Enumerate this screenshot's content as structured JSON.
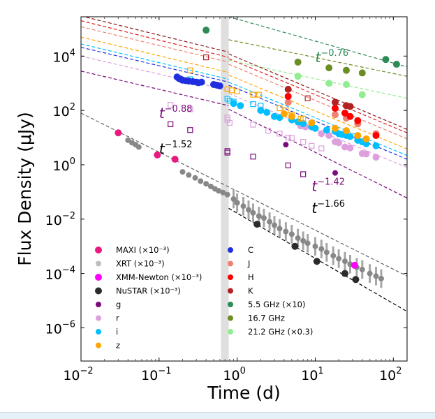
{
  "chart_data": {
    "type": "scatter",
    "xscale": "log",
    "yscale": "log",
    "xlabel": "Time (d)",
    "ylabel": "Flux Density (μJy)",
    "xlim": [
      0.01,
      150
    ],
    "ylim": [
      6e-08,
      280000.0
    ],
    "xticks": [
      {
        "v": -2,
        "label": "10",
        "exp": "−2"
      },
      {
        "v": -1,
        "label": "10",
        "exp": "−1"
      },
      {
        "v": 0,
        "label": "10",
        "exp": "0"
      },
      {
        "v": 1,
        "label": "10",
        "exp": "1"
      },
      {
        "v": 2,
        "label": "10",
        "exp": "2"
      }
    ],
    "yticks": [
      {
        "v": 4,
        "label": "10",
        "exp": "4"
      },
      {
        "v": 2,
        "label": "10",
        "exp": "2"
      },
      {
        "v": 0,
        "label": "10",
        "exp": "0"
      },
      {
        "v": -2,
        "label": "10",
        "exp": "−2"
      },
      {
        "v": -4,
        "label": "10",
        "exp": "−4"
      },
      {
        "v": -6,
        "label": "10",
        "exp": "−6"
      }
    ],
    "shaded_band": {
      "x0": 0.62,
      "x1": 0.78,
      "color": "#d9d9d9"
    },
    "legend_placement": "lower-left (two columns)",
    "series": [
      {
        "name": "MAXI (×10⁻³)",
        "color": "#e8197f",
        "marker": "circle",
        "size": 5,
        "points": [
          [
            0.03,
            15
          ],
          [
            0.095,
            2.3
          ],
          [
            0.16,
            1.6
          ]
        ]
      },
      {
        "name": "XRT (×10⁻³)",
        "color": "#888888",
        "legend_color": "#bfbfbf",
        "marker": "circle",
        "size": 4,
        "points": [
          [
            0.04,
            8
          ],
          [
            0.045,
            6.5
          ],
          [
            0.05,
            5.5
          ],
          [
            0.055,
            4.5
          ],
          [
            0.2,
            0.55
          ],
          [
            0.24,
            0.42
          ],
          [
            0.29,
            0.33
          ],
          [
            0.34,
            0.25
          ],
          [
            0.4,
            0.2
          ],
          [
            0.46,
            0.16
          ],
          [
            0.52,
            0.13
          ],
          [
            0.58,
            0.11
          ],
          [
            0.66,
            0.095
          ],
          [
            0.75,
            0.08
          ],
          [
            0.9,
            0.055
          ],
          [
            1.0,
            0.04
          ],
          [
            1.2,
            0.03
          ],
          [
            1.4,
            0.022
          ],
          [
            1.6,
            0.017
          ],
          [
            1.9,
            0.013
          ],
          [
            2.2,
            0.011
          ],
          [
            2.6,
            0.008
          ],
          [
            3.0,
            0.006
          ],
          [
            3.5,
            0.0045
          ],
          [
            4.2,
            0.0035
          ],
          [
            5,
            0.0028
          ],
          [
            6,
            0.002
          ],
          [
            7,
            0.0016
          ],
          [
            8,
            0.0013
          ],
          [
            10,
            0.001
          ],
          [
            12,
            0.0008
          ],
          [
            14,
            0.0006
          ],
          [
            17,
            0.00045
          ],
          [
            20,
            0.00035
          ],
          [
            24,
            0.00028
          ],
          [
            28,
            0.00022
          ],
          [
            34,
            0.00017
          ],
          [
            40,
            0.00014
          ],
          [
            50,
            0.0001
          ],
          [
            60,
            8e-05
          ],
          [
            70,
            6.5e-05
          ]
        ]
      },
      {
        "name": "XMM-Newton (×10⁻³)",
        "color": "#ff00ff",
        "marker": "circle",
        "size": 5,
        "points": [
          [
            32,
            0.0002
          ]
        ]
      },
      {
        "name": "NuSTAR (×10⁻³)",
        "color": "#2b2b2b",
        "marker": "circle",
        "size": 5,
        "points": [
          [
            1.8,
            0.0065
          ],
          [
            5.5,
            0.001
          ],
          [
            10.5,
            0.00028
          ],
          [
            24,
            0.0001
          ],
          [
            33,
            6e-05
          ]
        ]
      },
      {
        "name": "g",
        "color": "#7b0a7b",
        "marker": "circle",
        "size": 4,
        "points": [
          [
            4.2,
            5.5
          ],
          [
            18,
            0.5
          ]
        ],
        "open_squares": [
          [
            0.14,
            31
          ],
          [
            0.25,
            19
          ],
          [
            0.75,
            3.2
          ],
          [
            0.75,
            2.8
          ],
          [
            1.6,
            2.0
          ],
          [
            4.5,
            0.95
          ],
          [
            7,
            0.45
          ]
        ]
      },
      {
        "name": "r",
        "color": "#dda0dd",
        "marker": "circle",
        "size": 5,
        "points": [
          [
            6.5,
            27
          ],
          [
            7.5,
            25
          ],
          [
            12,
            14
          ],
          [
            15,
            12
          ],
          [
            18,
            7
          ],
          [
            20,
            6.5
          ],
          [
            24,
            4.5
          ],
          [
            28,
            4.2
          ],
          [
            40,
            2.6
          ],
          [
            45,
            2.5
          ],
          [
            60,
            1.9
          ]
        ],
        "open_squares": [
          [
            0.14,
            160
          ],
          [
            0.25,
            110
          ],
          [
            0.75,
            55
          ],
          [
            0.75,
            45
          ],
          [
            0.8,
            35
          ],
          [
            1.6,
            30
          ],
          [
            2.5,
            18
          ],
          [
            3.5,
            14
          ],
          [
            4.5,
            10
          ],
          [
            5,
            9.5
          ],
          [
            7,
            7
          ],
          [
            9,
            5
          ],
          [
            12,
            4
          ]
        ]
      },
      {
        "name": "i",
        "color": "#00bfff",
        "marker": "circle",
        "size": 5,
        "points": [
          [
            0.9,
            180
          ],
          [
            1.1,
            150
          ],
          [
            2,
            100
          ],
          [
            2.4,
            85
          ],
          [
            3,
            60
          ],
          [
            3.5,
            55
          ],
          [
            5,
            45
          ],
          [
            6,
            38
          ],
          [
            7,
            33
          ],
          [
            9,
            25
          ],
          [
            10,
            22
          ],
          [
            14,
            19
          ],
          [
            18,
            17
          ],
          [
            20,
            14
          ],
          [
            22,
            13
          ],
          [
            25,
            12
          ],
          [
            28,
            11
          ],
          [
            35,
            8
          ],
          [
            40,
            7
          ],
          [
            45,
            6
          ],
          [
            60,
            5
          ]
        ],
        "open_squares": [
          [
            0.25,
            1400
          ],
          [
            0.75,
            270
          ],
          [
            0.8,
            230
          ],
          [
            0.9,
            210
          ],
          [
            1.6,
            170
          ],
          [
            2.0,
            150
          ]
        ]
      },
      {
        "name": "z",
        "color": "#ffa500",
        "marker": "circle",
        "size": 5,
        "points": [
          [
            4,
            75
          ],
          [
            5,
            60
          ],
          [
            9,
            35
          ],
          [
            18,
            22
          ],
          [
            25,
            18
          ],
          [
            35,
            12
          ],
          [
            45,
            9
          ]
        ],
        "open_squares": [
          [
            0.25,
            3000
          ],
          [
            0.75,
            600
          ],
          [
            0.85,
            550
          ],
          [
            1.0,
            500
          ],
          [
            1.6,
            380
          ],
          [
            1.9,
            380
          ],
          [
            3.5,
            120
          ],
          [
            4.2,
            100
          ],
          [
            5,
            70
          ],
          [
            6.5,
            50
          ],
          [
            7,
            50
          ]
        ]
      },
      {
        "name": "C",
        "color": "#1f2fe0",
        "marker": "circle",
        "size": 5,
        "points": [
          [
            0.17,
            1700
          ],
          [
            0.18,
            1500
          ],
          [
            0.19,
            1400
          ],
          [
            0.2,
            1300
          ],
          [
            0.22,
            1250
          ],
          [
            0.24,
            1200
          ],
          [
            0.27,
            1150
          ],
          [
            0.3,
            1100
          ],
          [
            0.32,
            1050
          ],
          [
            0.35,
            1100
          ],
          [
            0.5,
            900
          ],
          [
            0.55,
            850
          ],
          [
            0.6,
            800
          ]
        ]
      },
      {
        "name": "J",
        "color": "#f08070",
        "marker": "circle",
        "size": 5,
        "points": [
          [
            4.5,
            200
          ],
          [
            18,
            70
          ],
          [
            25,
            52
          ],
          [
            35,
            32
          ],
          [
            60,
            14
          ]
        ]
      },
      {
        "name": "H",
        "color": "#ff0000",
        "marker": "circle",
        "size": 5,
        "points": [
          [
            4.5,
            330
          ],
          [
            18,
            120
          ],
          [
            24,
            80
          ],
          [
            28,
            60
          ],
          [
            35,
            42
          ],
          [
            60,
            12
          ]
        ]
      },
      {
        "name": "K",
        "color": "#b22222",
        "marker": "circle",
        "size": 5,
        "points": [
          [
            4.5,
            600
          ],
          [
            18,
            200
          ],
          [
            25,
            150
          ],
          [
            28,
            140
          ]
        ],
        "open_squares": [
          [
            0.4,
            9000
          ],
          [
            8,
            280
          ]
        ]
      },
      {
        "name": "5.5 GHz (×10)",
        "color": "#2e8b57",
        "marker": "circle",
        "size": 5,
        "points": [
          [
            0.4,
            90000
          ],
          [
            80,
            7500
          ],
          [
            110,
            5000
          ]
        ]
      },
      {
        "name": "16.7 GHz",
        "color": "#6b8e23",
        "marker": "circle",
        "size": 5,
        "points": [
          [
            6,
            6000
          ],
          [
            15,
            3700
          ],
          [
            25,
            3000
          ],
          [
            40,
            2400
          ]
        ]
      },
      {
        "name": "21.2 GHz (×0.3)",
        "color": "#90ee90",
        "marker": "circle",
        "size": 5,
        "points": [
          [
            6,
            1800
          ],
          [
            15,
            1000
          ],
          [
            25,
            900
          ],
          [
            40,
            380
          ]
        ]
      }
    ],
    "fit_lines": [
      {
        "color": "#2e8b57",
        "segments": [
          [
            0.78,
            280000,
            150,
            4000
          ]
        ]
      },
      {
        "color": "#6b8e23",
        "segments": [
          [
            0.78,
            40000,
            150,
            1800
          ]
        ]
      },
      {
        "color": "#90ee90",
        "segments": [
          [
            0.78,
            7000,
            150,
            280
          ]
        ]
      },
      {
        "color": "#8b1a1a",
        "segments": [
          [
            0.01,
            300000,
            0.78,
            14000
          ],
          [
            0.78,
            12000,
            150,
            20
          ]
        ]
      },
      {
        "color": "#e02020",
        "segments": [
          [
            0.01,
            200000,
            0.78,
            9000
          ],
          [
            0.78,
            8000,
            150,
            15
          ]
        ]
      },
      {
        "color": "#f08070",
        "segments": [
          [
            0.01,
            120000,
            0.78,
            6000
          ],
          [
            0.78,
            5000,
            150,
            9
          ]
        ]
      },
      {
        "color": "#ffa500",
        "segments": [
          [
            0.01,
            50000,
            0.78,
            2500
          ],
          [
            0.78,
            2000,
            150,
            3.8
          ]
        ]
      },
      {
        "color": "#00bfff",
        "segments": [
          [
            0.01,
            28000,
            0.78,
            1400
          ],
          [
            0.78,
            1100,
            150,
            2.2
          ]
        ]
      },
      {
        "color": "#1f2fe0",
        "segments": [
          [
            0.01,
            21000,
            0.78,
            1100
          ],
          [
            0.78,
            850,
            150,
            1.6
          ]
        ]
      },
      {
        "color": "#dda0dd",
        "segments": [
          [
            0.01,
            10000,
            0.78,
            550
          ],
          [
            0.78,
            420,
            150,
            0.8
          ]
        ]
      },
      {
        "color": "#7b0a7b",
        "segments": [
          [
            0.01,
            2800,
            0.78,
            150
          ],
          [
            0.78,
            110,
            150,
            0.06
          ]
        ]
      },
      {
        "color": "#666666",
        "segments": [
          [
            0.01,
            80,
            150,
            8e-05
          ]
        ]
      },
      {
        "color": "#000000",
        "segments": [
          [
            0.78,
            0.025,
            150,
            4e-06
          ]
        ]
      }
    ],
    "annotations": [
      {
        "base": "t",
        "exp": "−0.88",
        "x": 0.1,
        "y": 52,
        "color": "#7b0a7b"
      },
      {
        "base": "t",
        "exp": "−1.52",
        "x": 0.1,
        "y": 2.6,
        "color": "#000000"
      },
      {
        "base": "t",
        "exp": "−0.76",
        "x": 10,
        "y": 6000,
        "color": "#2e8b57"
      },
      {
        "base": "t",
        "exp": "−1.42",
        "x": 9,
        "y": 0.11,
        "color": "#7b0a7b"
      },
      {
        "base": "t",
        "exp": "−1.66",
        "x": 9,
        "y": 0.017,
        "color": "#000000"
      }
    ]
  }
}
